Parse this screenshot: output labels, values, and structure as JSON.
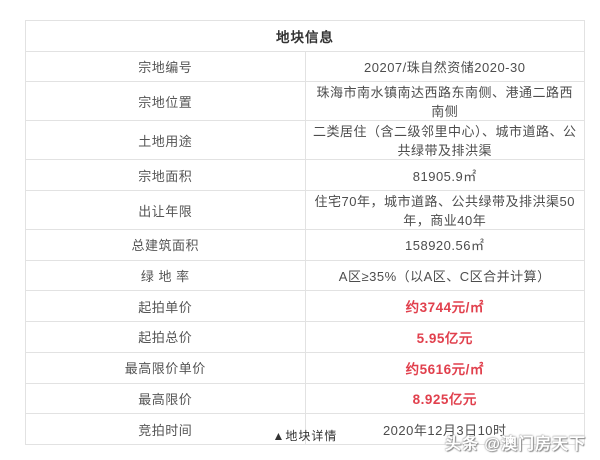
{
  "colors": {
    "highlight": "#e1404d",
    "border": "#e2e2e2",
    "text": "#4f4f4f"
  },
  "table": {
    "title": "地块信息",
    "rows": [
      {
        "label": "宗地编号",
        "value": "20207/珠自然资储2020-30",
        "highlight": false
      },
      {
        "label": "宗地位置",
        "value": "珠海市南水镇南达西路东南侧、港通二路西南侧",
        "highlight": false
      },
      {
        "label": "土地用途",
        "value": "二类居住（含二级邻里中心）、城市道路、公共绿带及排洪渠",
        "highlight": false
      },
      {
        "label": "宗地面积",
        "value": "81905.9㎡",
        "highlight": false
      },
      {
        "label": "出让年限",
        "value": "住宅70年，城市道路、公共绿带及排洪渠50年，商业40年",
        "highlight": false
      },
      {
        "label": "总建筑面积",
        "value": "158920.56㎡",
        "highlight": false
      },
      {
        "label": "绿 地 率",
        "value": "A区≥35%（以A区、C区合并计算）",
        "highlight": false
      },
      {
        "label": "起拍单价",
        "value": "约3744元/㎡",
        "highlight": true
      },
      {
        "label": "起拍总价",
        "value": "5.95亿元",
        "highlight": true
      },
      {
        "label": "最高限价单价",
        "value": "约5616元/㎡",
        "highlight": true
      },
      {
        "label": "最高限价",
        "value": "8.925亿元",
        "highlight": true
      },
      {
        "label": "竞拍时间",
        "value": "2020年12月3日10时",
        "highlight": false
      }
    ]
  },
  "footer": {
    "caption": "▲地块详情"
  },
  "watermark": {
    "text": "头条 @澳门房天下"
  }
}
